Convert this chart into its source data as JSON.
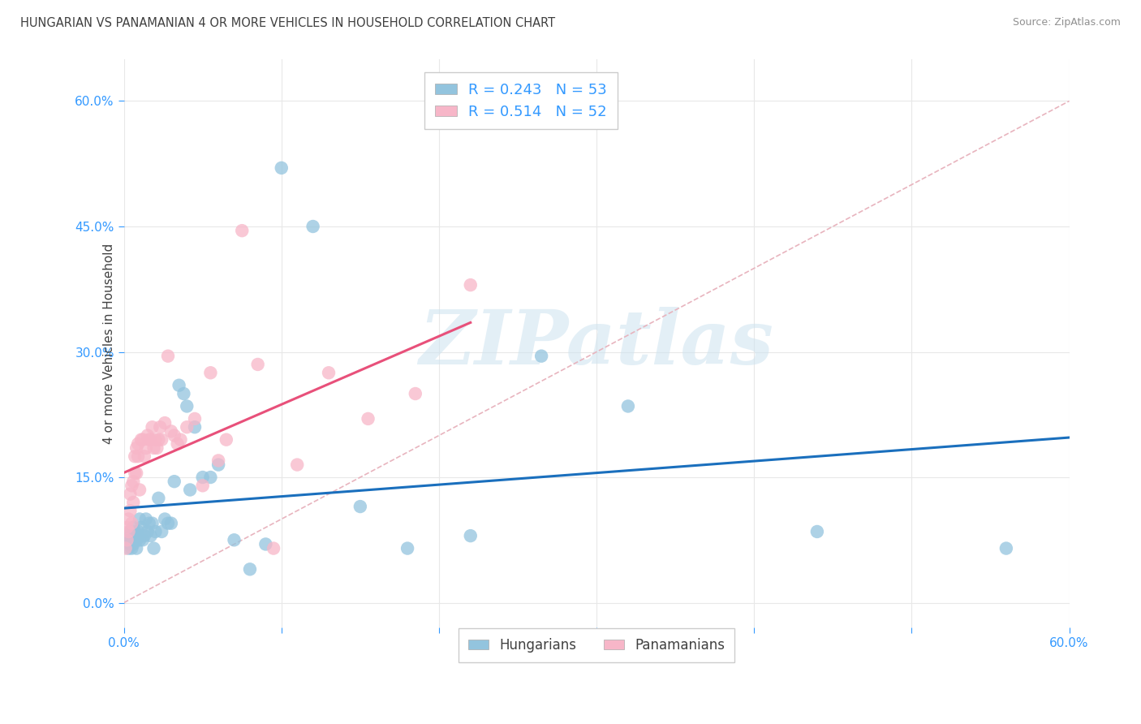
{
  "title": "HUNGARIAN VS PANAMANIAN 4 OR MORE VEHICLES IN HOUSEHOLD CORRELATION CHART",
  "source": "Source: ZipAtlas.com",
  "ylabel": "4 or more Vehicles in Household",
  "xmin": 0.0,
  "xmax": 0.6,
  "ymin": -0.03,
  "ymax": 0.65,
  "ytick_positions": [
    0.0,
    0.15,
    0.3,
    0.45,
    0.6
  ],
  "xtick_positions": [
    0.0,
    0.1,
    0.2,
    0.3,
    0.4,
    0.5,
    0.6
  ],
  "blue_scatter_color": "#93c4de",
  "pink_scatter_color": "#f7b6c8",
  "blue_line_color": "#1a6fbd",
  "pink_line_color": "#e8507a",
  "ref_line_color": "#e8b4be",
  "watermark_color": "#cde3f0",
  "grid_color": "#e8e8e8",
  "tick_label_color": "#3399ff",
  "title_color": "#404040",
  "source_color": "#909090",
  "ylabel_color": "#404040",
  "hungarian_x": [
    0.002,
    0.003,
    0.003,
    0.004,
    0.004,
    0.005,
    0.005,
    0.006,
    0.006,
    0.007,
    0.007,
    0.008,
    0.008,
    0.009,
    0.009,
    0.01,
    0.01,
    0.011,
    0.012,
    0.013,
    0.014,
    0.015,
    0.016,
    0.017,
    0.018,
    0.019,
    0.02,
    0.022,
    0.024,
    0.026,
    0.028,
    0.03,
    0.032,
    0.035,
    0.038,
    0.04,
    0.042,
    0.045,
    0.05,
    0.055,
    0.06,
    0.07,
    0.08,
    0.09,
    0.1,
    0.12,
    0.15,
    0.18,
    0.22,
    0.265,
    0.32,
    0.44,
    0.56
  ],
  "hungarian_y": [
    0.075,
    0.065,
    0.08,
    0.07,
    0.085,
    0.08,
    0.065,
    0.09,
    0.07,
    0.075,
    0.085,
    0.075,
    0.065,
    0.08,
    0.085,
    0.075,
    0.1,
    0.09,
    0.075,
    0.08,
    0.1,
    0.085,
    0.095,
    0.08,
    0.095,
    0.065,
    0.085,
    0.125,
    0.085,
    0.1,
    0.095,
    0.095,
    0.145,
    0.26,
    0.25,
    0.235,
    0.135,
    0.21,
    0.15,
    0.15,
    0.165,
    0.075,
    0.04,
    0.07,
    0.52,
    0.45,
    0.115,
    0.065,
    0.08,
    0.295,
    0.235,
    0.085,
    0.065
  ],
  "panamanian_x": [
    0.001,
    0.002,
    0.002,
    0.003,
    0.003,
    0.004,
    0.004,
    0.005,
    0.005,
    0.006,
    0.006,
    0.007,
    0.007,
    0.008,
    0.008,
    0.009,
    0.009,
    0.01,
    0.011,
    0.012,
    0.013,
    0.014,
    0.015,
    0.016,
    0.017,
    0.018,
    0.019,
    0.02,
    0.021,
    0.022,
    0.023,
    0.024,
    0.026,
    0.028,
    0.03,
    0.032,
    0.034,
    0.036,
    0.04,
    0.045,
    0.05,
    0.055,
    0.06,
    0.065,
    0.075,
    0.085,
    0.095,
    0.11,
    0.13,
    0.155,
    0.185,
    0.22
  ],
  "panamanian_y": [
    0.065,
    0.075,
    0.09,
    0.1,
    0.085,
    0.11,
    0.13,
    0.14,
    0.095,
    0.12,
    0.145,
    0.155,
    0.175,
    0.155,
    0.185,
    0.175,
    0.19,
    0.135,
    0.195,
    0.195,
    0.175,
    0.185,
    0.2,
    0.195,
    0.195,
    0.21,
    0.185,
    0.195,
    0.185,
    0.195,
    0.21,
    0.195,
    0.215,
    0.295,
    0.205,
    0.2,
    0.19,
    0.195,
    0.21,
    0.22,
    0.14,
    0.275,
    0.17,
    0.195,
    0.445,
    0.285,
    0.065,
    0.165,
    0.275,
    0.22,
    0.25,
    0.38
  ]
}
